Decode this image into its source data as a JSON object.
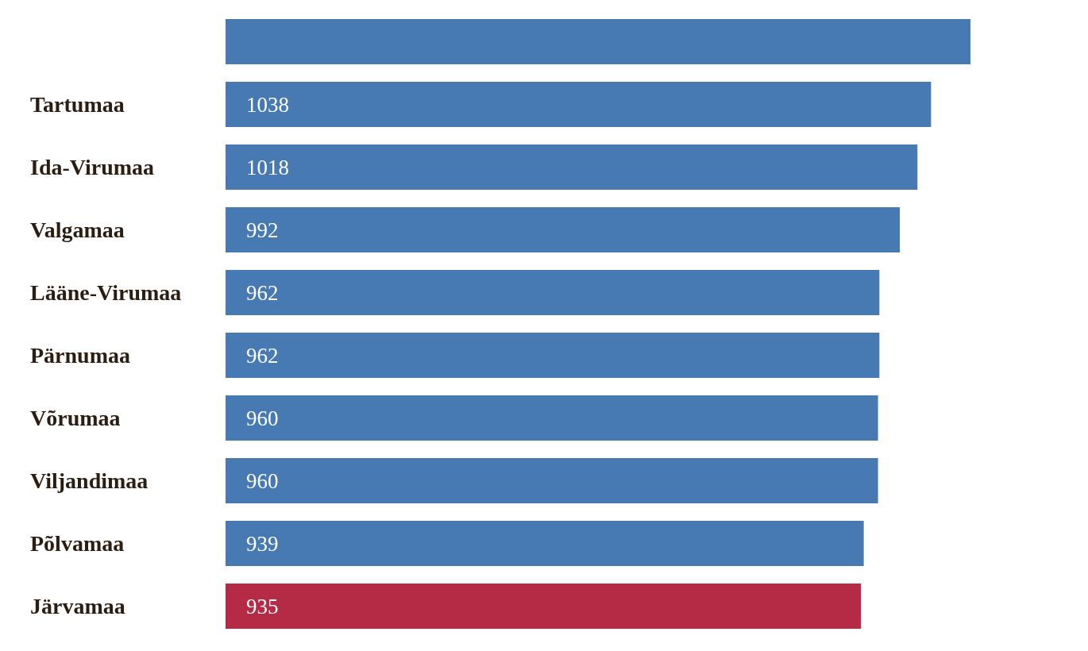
{
  "chart_data": {
    "type": "bar",
    "orientation": "horizontal",
    "categories": [
      null,
      "Tartumaa",
      "Ida-Virumaa",
      "Valgamaa",
      "Lääne-Virumaa",
      "Pärnumaa",
      "Võrumaa",
      "Viljandimaa",
      "Põlvamaa",
      "Järvamaa"
    ],
    "values": [
      1096,
      1038,
      1018,
      992,
      962,
      962,
      960,
      960,
      939,
      935
    ],
    "value_labels": [
      null,
      "1038",
      "1018",
      "992",
      "962",
      "962",
      "960",
      "960",
      "939",
      "935"
    ],
    "colors": [
      "#4779b3",
      "#4779b3",
      "#4779b3",
      "#4779b3",
      "#4779b3",
      "#4779b3",
      "#4779b3",
      "#4779b3",
      "#4779b3",
      "#b52a44"
    ]
  }
}
